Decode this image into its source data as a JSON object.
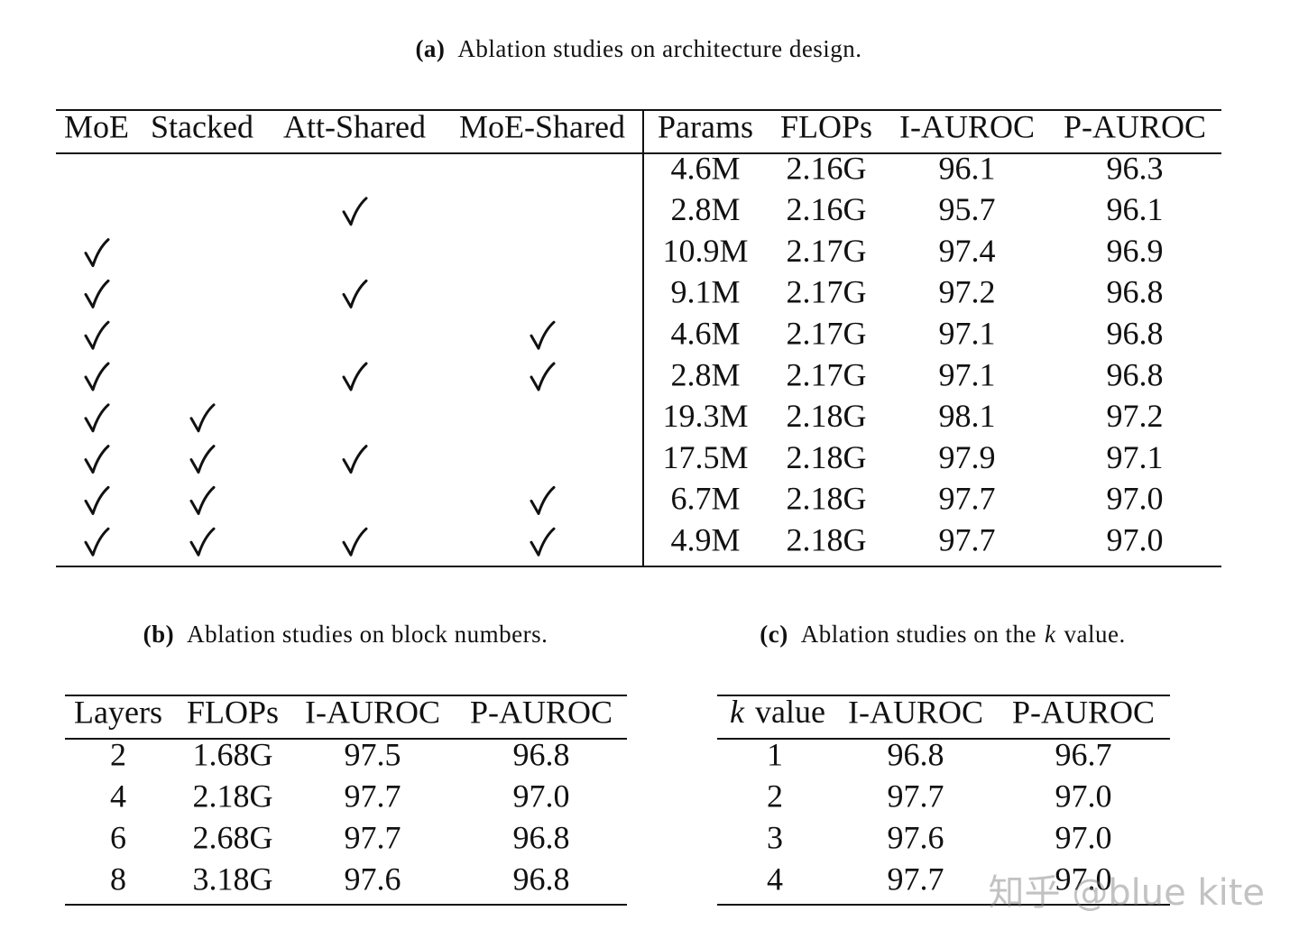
{
  "tables": {
    "a": {
      "label": "(a)",
      "caption": "Ablation studies on architecture design.",
      "check_columns": [
        "MoE",
        "Stacked",
        "Att-Shared",
        "MoE-Shared"
      ],
      "columns": [
        "Params",
        "FLOPs",
        "I-AUROC",
        "P-AUROC"
      ],
      "rows": [
        {
          "checks": [
            false,
            false,
            false,
            false
          ],
          "cells": [
            "4.6M",
            "2.16G",
            "96.1",
            "96.3"
          ]
        },
        {
          "checks": [
            false,
            false,
            true,
            false
          ],
          "cells": [
            "2.8M",
            "2.16G",
            "95.7",
            "96.1"
          ]
        },
        {
          "checks": [
            true,
            false,
            false,
            false
          ],
          "cells": [
            "10.9M",
            "2.17G",
            "97.4",
            "96.9"
          ]
        },
        {
          "checks": [
            true,
            false,
            true,
            false
          ],
          "cells": [
            "9.1M",
            "2.17G",
            "97.2",
            "96.8"
          ]
        },
        {
          "checks": [
            true,
            false,
            false,
            true
          ],
          "cells": [
            "4.6M",
            "2.17G",
            "97.1",
            "96.8"
          ]
        },
        {
          "checks": [
            true,
            false,
            true,
            true
          ],
          "cells": [
            "2.8M",
            "2.17G",
            "97.1",
            "96.8"
          ]
        },
        {
          "checks": [
            true,
            true,
            false,
            false
          ],
          "cells": [
            "19.3M",
            "2.18G",
            "98.1",
            "97.2"
          ]
        },
        {
          "checks": [
            true,
            true,
            true,
            false
          ],
          "cells": [
            "17.5M",
            "2.18G",
            "97.9",
            "97.1"
          ]
        },
        {
          "checks": [
            true,
            true,
            false,
            true
          ],
          "cells": [
            "6.7M",
            "2.18G",
            "97.7",
            "97.0"
          ]
        },
        {
          "checks": [
            true,
            true,
            true,
            true
          ],
          "cells": [
            "4.9M",
            "2.18G",
            "97.7",
            "97.0"
          ]
        }
      ]
    },
    "b": {
      "label": "(b)",
      "caption": "Ablation studies on block numbers.",
      "columns": [
        "Layers",
        "FLOPs",
        "I-AUROC",
        "P-AUROC"
      ],
      "rows": [
        [
          "2",
          "1.68G",
          "97.5",
          "96.8"
        ],
        [
          "4",
          "2.18G",
          "97.7",
          "97.0"
        ],
        [
          "6",
          "2.68G",
          "97.7",
          "96.8"
        ],
        [
          "8",
          "3.18G",
          "97.6",
          "96.8"
        ]
      ]
    },
    "c": {
      "label": "(c)",
      "caption": {
        "before": "Ablation studies on the",
        "var": "k",
        "after": "value."
      },
      "columns": [
        {
          "var": "k",
          "text": "value"
        },
        "I-AUROC",
        "P-AUROC"
      ],
      "rows": [
        [
          "1",
          "96.8",
          "96.7"
        ],
        [
          "2",
          "97.7",
          "97.0"
        ],
        [
          "3",
          "97.6",
          "97.0"
        ],
        [
          "4",
          "97.7",
          "97.0"
        ]
      ]
    }
  },
  "watermark": "知乎 @blue kite"
}
